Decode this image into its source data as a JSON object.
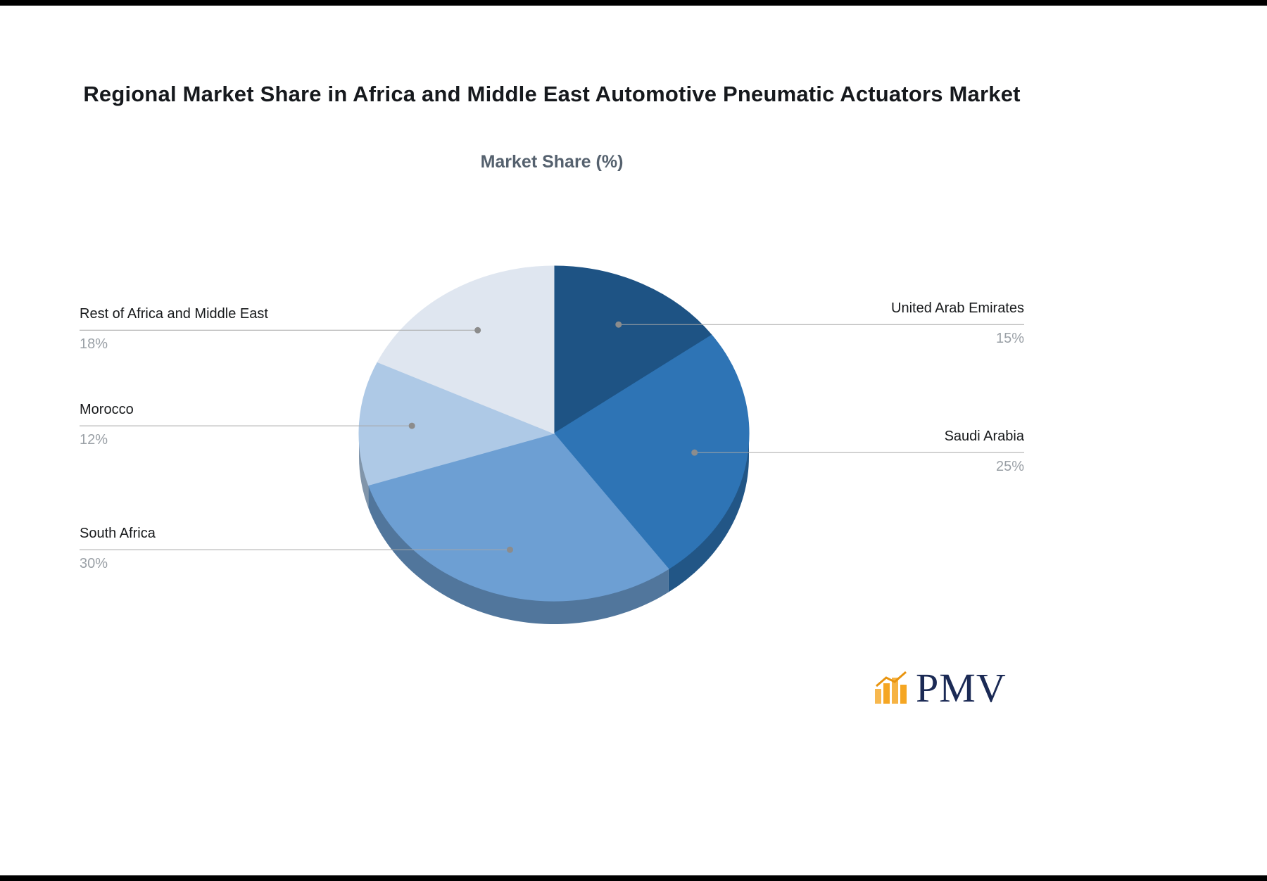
{
  "chart_data": {
    "type": "pie",
    "title": "Regional Market Share in Africa and Middle East Automotive Pneumatic Actuators Market",
    "subtitle": "Market Share (%)",
    "unit": "%",
    "labels": [
      "United Arab Emirates",
      "Saudi Arabia",
      "South Africa",
      "Morocco",
      "Rest of Africa and Middle East"
    ],
    "values": [
      15,
      25,
      30,
      12,
      18
    ],
    "colors": [
      "#1E5384",
      "#2E74B5",
      "#6D9FD3",
      "#AEC9E6",
      "#DFE6F0"
    ],
    "label_positions": [
      "right",
      "right",
      "left",
      "left",
      "left"
    ],
    "start_angle_deg": 0,
    "direction": "clockwise",
    "effect": "3d",
    "legend": "none"
  },
  "logo": {
    "text": "PMV",
    "icon": "bar-chart-icon",
    "icon_color": "#F5A623",
    "icon_accent_color": "#E8940F",
    "text_color": "#1B2A55"
  }
}
